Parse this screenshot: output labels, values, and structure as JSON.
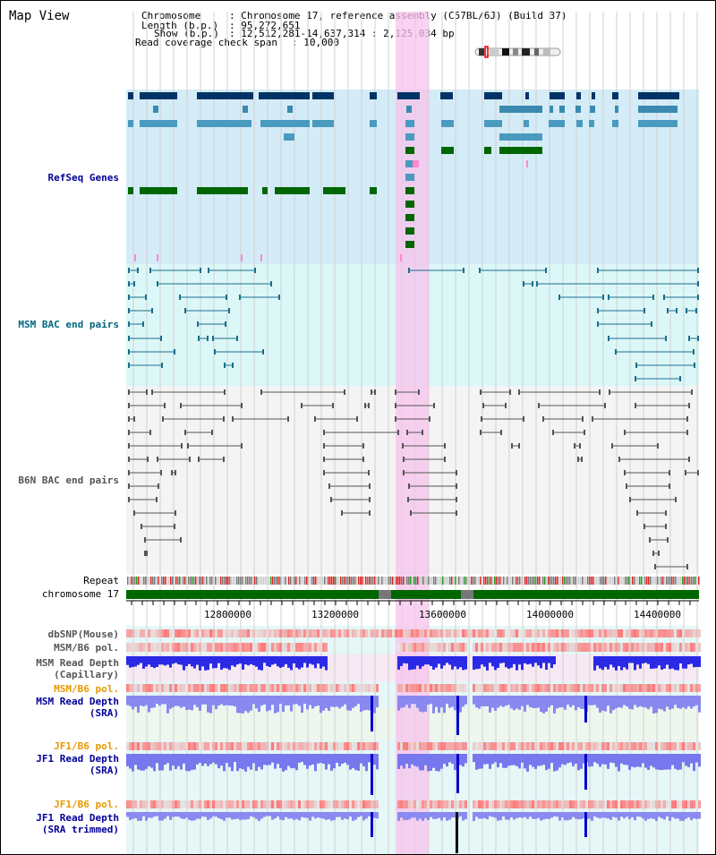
{
  "view_title": "Map View",
  "info": {
    "chromosome_label": "Chromosome",
    "chromosome_value": ": Chromosome 17, reference assembly (C57BL/6J) (Build 37)",
    "length_label": "Length (b.p.)",
    "length_value": ": 95,272,651",
    "show_label": "Show (b.p.)",
    "show_value": ": 12,512,281-14,637,314 : 2,125,034 bp",
    "coverage_label": "Read coverage check span",
    "coverage_value": ": 10,000"
  },
  "tracks": {
    "refseq": "RefSeq Genes",
    "msm_bac": "MSM BAC end pairs",
    "b6n_bac": "B6N BAC end pairs",
    "repeat": "Repeat",
    "chromosome": "chromosome 17",
    "dbsnp": "dbSNP(Mouse)",
    "msm_b6_pol": "MSM/B6 pol.",
    "msm_read_depth_cap_1": "MSM Read Depth",
    "msm_read_depth_cap_2": "(Capillary)",
    "msm_b6_pol_2": "MSM/B6 pol.",
    "msm_read_depth_sra_1": "MSM Read Depth",
    "msm_read_depth_sra_2": "(SRA)",
    "jf1_b6_pol": "JF1/B6 pol.",
    "jf1_read_depth_sra_1": "JF1 Read Depth",
    "jf1_read_depth_sra_2": "(SRA)",
    "jf1_b6_pol_2": "JF1/B6 pol.",
    "jf1_read_depth_trim_1": "JF1 Read Depth",
    "jf1_read_depth_trim_2": "(SRA trimmed)"
  },
  "axis": {
    "ticks": [
      "12800000",
      "13200000",
      "13600000",
      "14000000",
      "14400000"
    ]
  },
  "colors": {
    "refseq_bg": "#d4ecf7",
    "msm_bg": "#dcf7f7",
    "b6n_bg": "#f4f4f4",
    "highlight": "#f7c3ec",
    "navy_label": "#000099",
    "teal_label": "#006680",
    "orange_label": "#e69900",
    "chromosome_green": "#006600"
  }
}
